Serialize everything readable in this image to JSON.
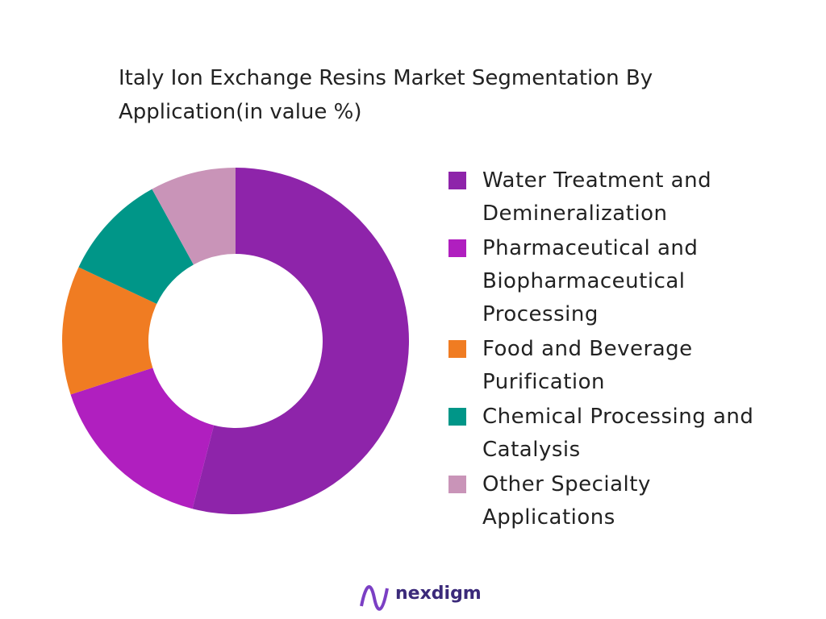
{
  "chart_data": {
    "type": "donut",
    "title": "Italy Ion Exchange Resins Market Segmentation By Application(in value %)",
    "categories": [
      "Water Treatment and Demineralization",
      "Pharmaceutical and Biopharmaceutical Processing",
      "Food and Beverage Purification",
      "Chemical Processing and Catalysis",
      "Other Specialty Applications"
    ],
    "values": [
      54,
      16,
      12,
      10,
      8
    ],
    "colors": [
      "#8e24aa",
      "#b01fbf",
      "#f07c22",
      "#009688",
      "#c994b8"
    ],
    "legend": "right"
  },
  "logo": "nexdigm"
}
